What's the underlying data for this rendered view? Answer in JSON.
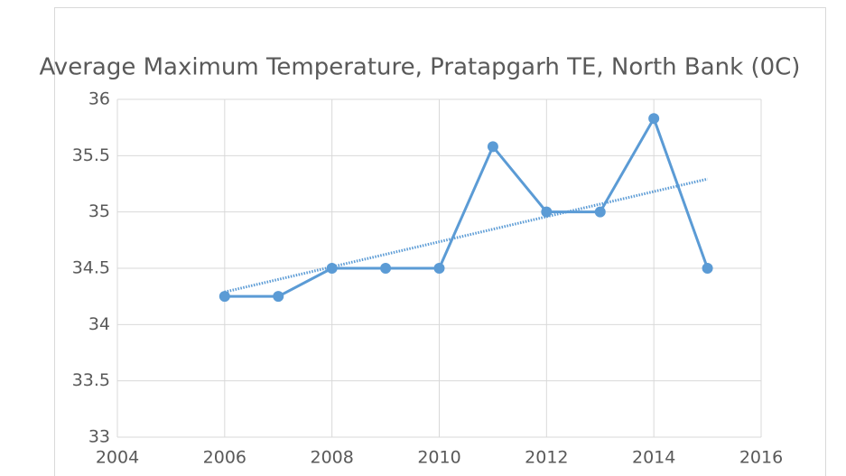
{
  "chart_data": {
    "type": "line",
    "title": "Average Maximum Temperature, Pratapgarh TE, North Bank (0C)",
    "x": [
      2006,
      2007,
      2008,
      2009,
      2010,
      2011,
      2012,
      2013,
      2014,
      2015
    ],
    "values": [
      34.25,
      34.25,
      34.5,
      34.5,
      34.5,
      35.58,
      35.0,
      35.0,
      35.83,
      34.5
    ],
    "color": "#5b9bd5",
    "xlim": [
      2004,
      2016
    ],
    "xticks": [
      2004,
      2006,
      2008,
      2010,
      2012,
      2014,
      2016
    ],
    "ylim": [
      33,
      36
    ],
    "yticks": [
      33,
      33.5,
      34,
      34.5,
      35,
      35.5,
      36
    ],
    "grid": true,
    "trendline": "linear"
  }
}
